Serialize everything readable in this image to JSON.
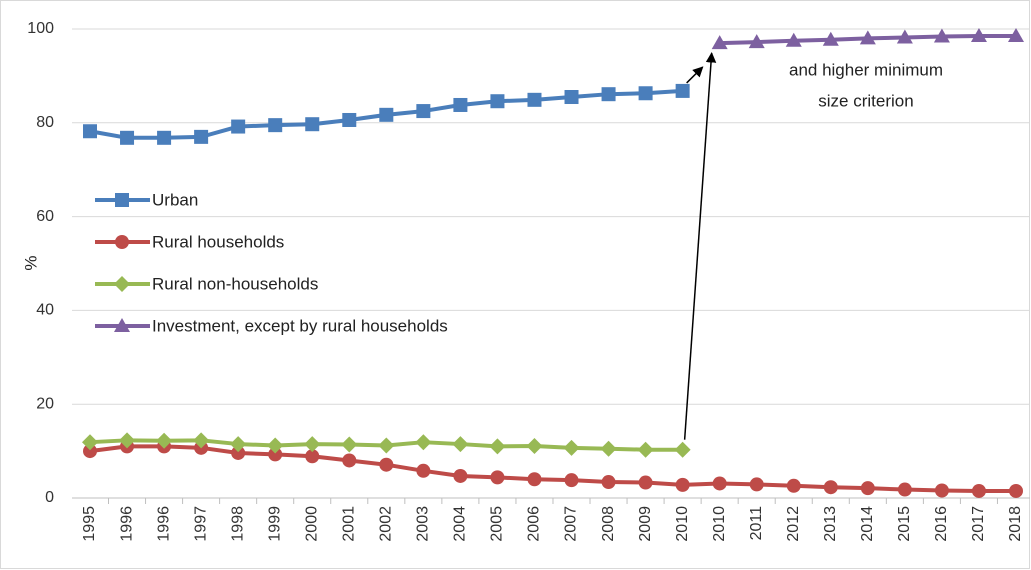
{
  "chart_data": {
    "type": "line",
    "y_label": "%",
    "categories": [
      "1995",
      "1996",
      "1996",
      "1997",
      "1998",
      "1999",
      "2000",
      "2001",
      "2002",
      "2003",
      "2004",
      "2005",
      "2006",
      "2007",
      "2008",
      "2009",
      "2010",
      "2010",
      "2011",
      "2012",
      "2013",
      "2014",
      "2015",
      "2016",
      "2017",
      "2018"
    ],
    "series": [
      {
        "name": "Urban",
        "color": "#4a7ebb",
        "marker": "square",
        "values": [
          78.2,
          76.8,
          76.8,
          77.0,
          79.2,
          79.5,
          79.7,
          80.6,
          81.7,
          82.5,
          83.8,
          84.6,
          84.9,
          85.5,
          86.1,
          86.3,
          86.8,
          null,
          null,
          null,
          null,
          null,
          null,
          null,
          null,
          null
        ]
      },
      {
        "name": "Rural households",
        "color": "#be4b48",
        "marker": "circle",
        "values": [
          10.0,
          11.0,
          11.0,
          10.7,
          9.6,
          9.3,
          8.9,
          8.0,
          7.1,
          5.8,
          4.7,
          4.4,
          4.0,
          3.8,
          3.4,
          3.3,
          2.8,
          3.1,
          2.9,
          2.6,
          2.3,
          2.1,
          1.8,
          1.6,
          1.5,
          1.5
        ]
      },
      {
        "name": "Rural non-households",
        "color": "#98b954",
        "marker": "diamond",
        "values": [
          11.9,
          12.3,
          12.2,
          12.3,
          11.5,
          11.2,
          11.5,
          11.4,
          11.2,
          11.9,
          11.5,
          11.0,
          11.1,
          10.7,
          10.5,
          10.3,
          10.3,
          null,
          null,
          null,
          null,
          null,
          null,
          null,
          null,
          null
        ]
      },
      {
        "name": "Investment, except by rural households",
        "color": "#7d60a0",
        "marker": "triangle",
        "values": [
          null,
          null,
          null,
          null,
          null,
          null,
          null,
          null,
          null,
          null,
          null,
          null,
          null,
          null,
          null,
          null,
          null,
          97.0,
          97.2,
          97.5,
          97.7,
          98.0,
          98.2,
          98.4,
          98.5,
          98.5
        ]
      }
    ],
    "annotation": [
      "and higher minimum",
      "size criterion"
    ],
    "ylim": [
      0,
      100
    ],
    "yticks": [
      0,
      20,
      40,
      60,
      80,
      100
    ],
    "grid": true,
    "legend": "left"
  }
}
